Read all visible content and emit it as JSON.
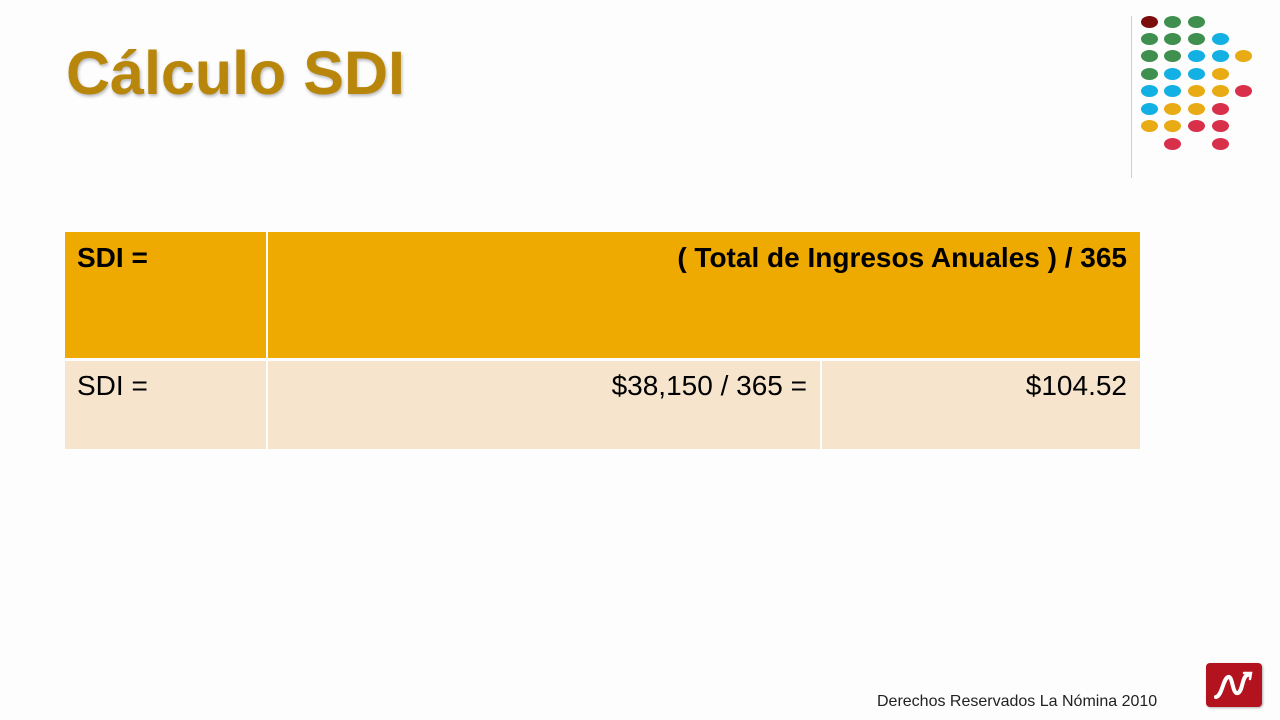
{
  "slide": {
    "title": "Cálculo SDI",
    "footer": "Derechos Reservados La Nómina 2010"
  },
  "table": {
    "header": {
      "label": "SDI =",
      "formula": "( Total de Ingresos Anuales ) / 365"
    },
    "row": {
      "label": "SDI =",
      "calculation": "$38,150 / 365 =",
      "result": "$104.52"
    }
  },
  "colors": {
    "title": "#b8860b",
    "header_fill": "#eeaa00",
    "row_fill": "#f6e4cd",
    "logo_fill": "#b3121f",
    "dot_dark_red": "#7b0d0d",
    "dot_green": "#3f8f4f",
    "dot_cyan": "#12b0e3",
    "dot_yellow": "#e9ab14",
    "dot_red": "#d8304a"
  },
  "icons": {
    "logo": "la-nomina-logo-icon",
    "decoration": "dot-grid-decoration"
  }
}
